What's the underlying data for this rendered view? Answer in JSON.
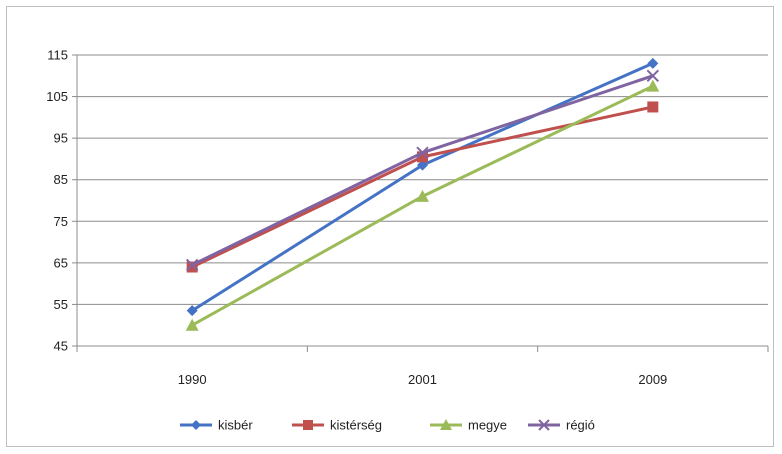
{
  "chart_data": {
    "type": "line",
    "title": "",
    "xlabel": "",
    "ylabel": "",
    "categories": [
      "1990",
      "2001",
      "2009"
    ],
    "ylim": [
      45,
      115
    ],
    "yticks": [
      45,
      55,
      65,
      75,
      85,
      95,
      105,
      115
    ],
    "grid": true,
    "legend": "bottom",
    "series": [
      {
        "name": "kisbér",
        "values": [
          53.5,
          88.5,
          113
        ],
        "color": "#4472c4",
        "marker": "diamond"
      },
      {
        "name": "kistérség",
        "values": [
          64,
          90.5,
          102.5
        ],
        "color": "#c0504d",
        "marker": "square"
      },
      {
        "name": "megye",
        "values": [
          50,
          81,
          107.5
        ],
        "color": "#9bbb59",
        "marker": "triangle"
      },
      {
        "name": "régió",
        "values": [
          64.5,
          91.5,
          110
        ],
        "color": "#8064a2",
        "marker": "x"
      }
    ]
  }
}
